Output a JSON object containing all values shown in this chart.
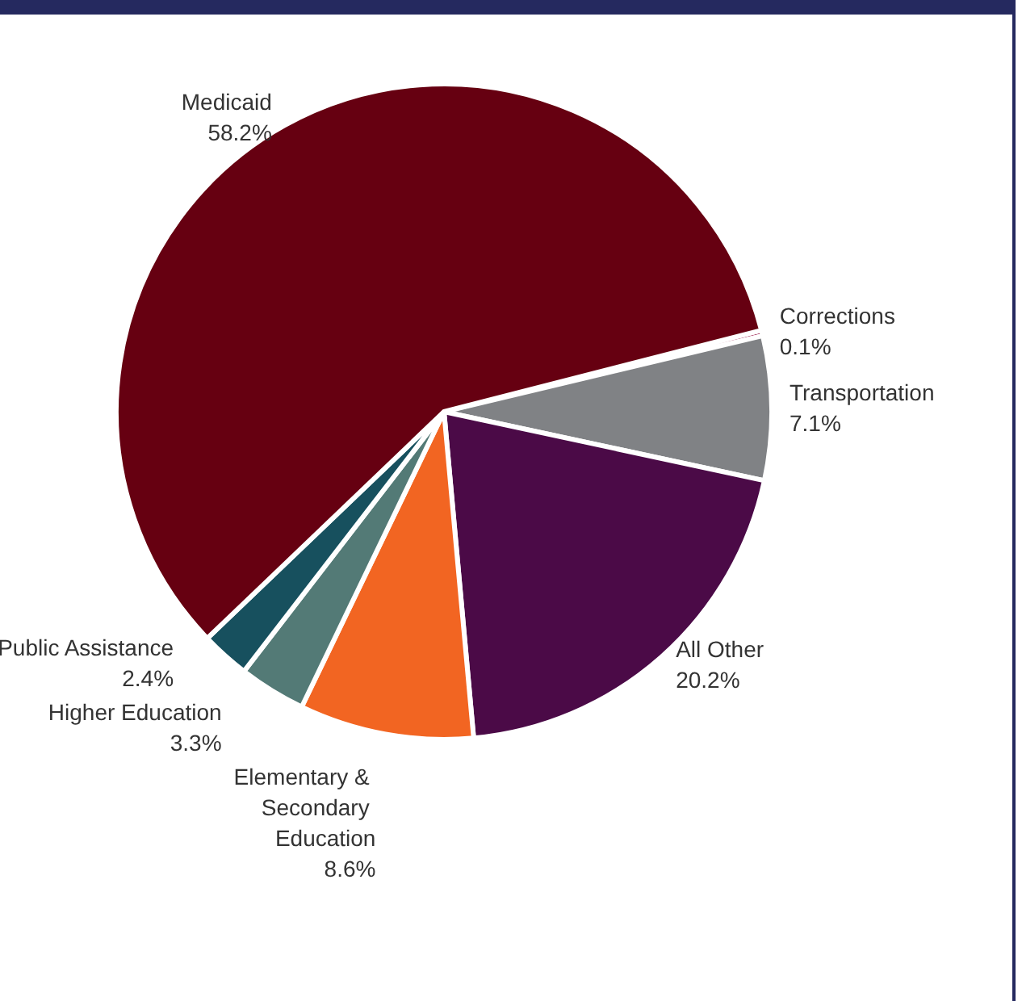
{
  "chart_data": {
    "type": "pie",
    "categories": [
      "Corrections",
      "Transportation",
      "All Other",
      "Elementary & Secondary Education",
      "Higher Education",
      "Public Assistance",
      "Medicaid"
    ],
    "values": [
      0.1,
      7.1,
      20.2,
      8.6,
      3.3,
      2.4,
      58.2
    ],
    "colors": [
      "#9b1b4b",
      "#808285",
      "#4b0a47",
      "#f26522",
      "#537a76",
      "#17505e",
      "#660011"
    ],
    "value_labels": [
      "0.1%",
      "7.1%",
      "20.2%",
      "8.6%",
      "3.3%",
      "2.4%",
      "58.2%"
    ],
    "legend": false
  }
}
